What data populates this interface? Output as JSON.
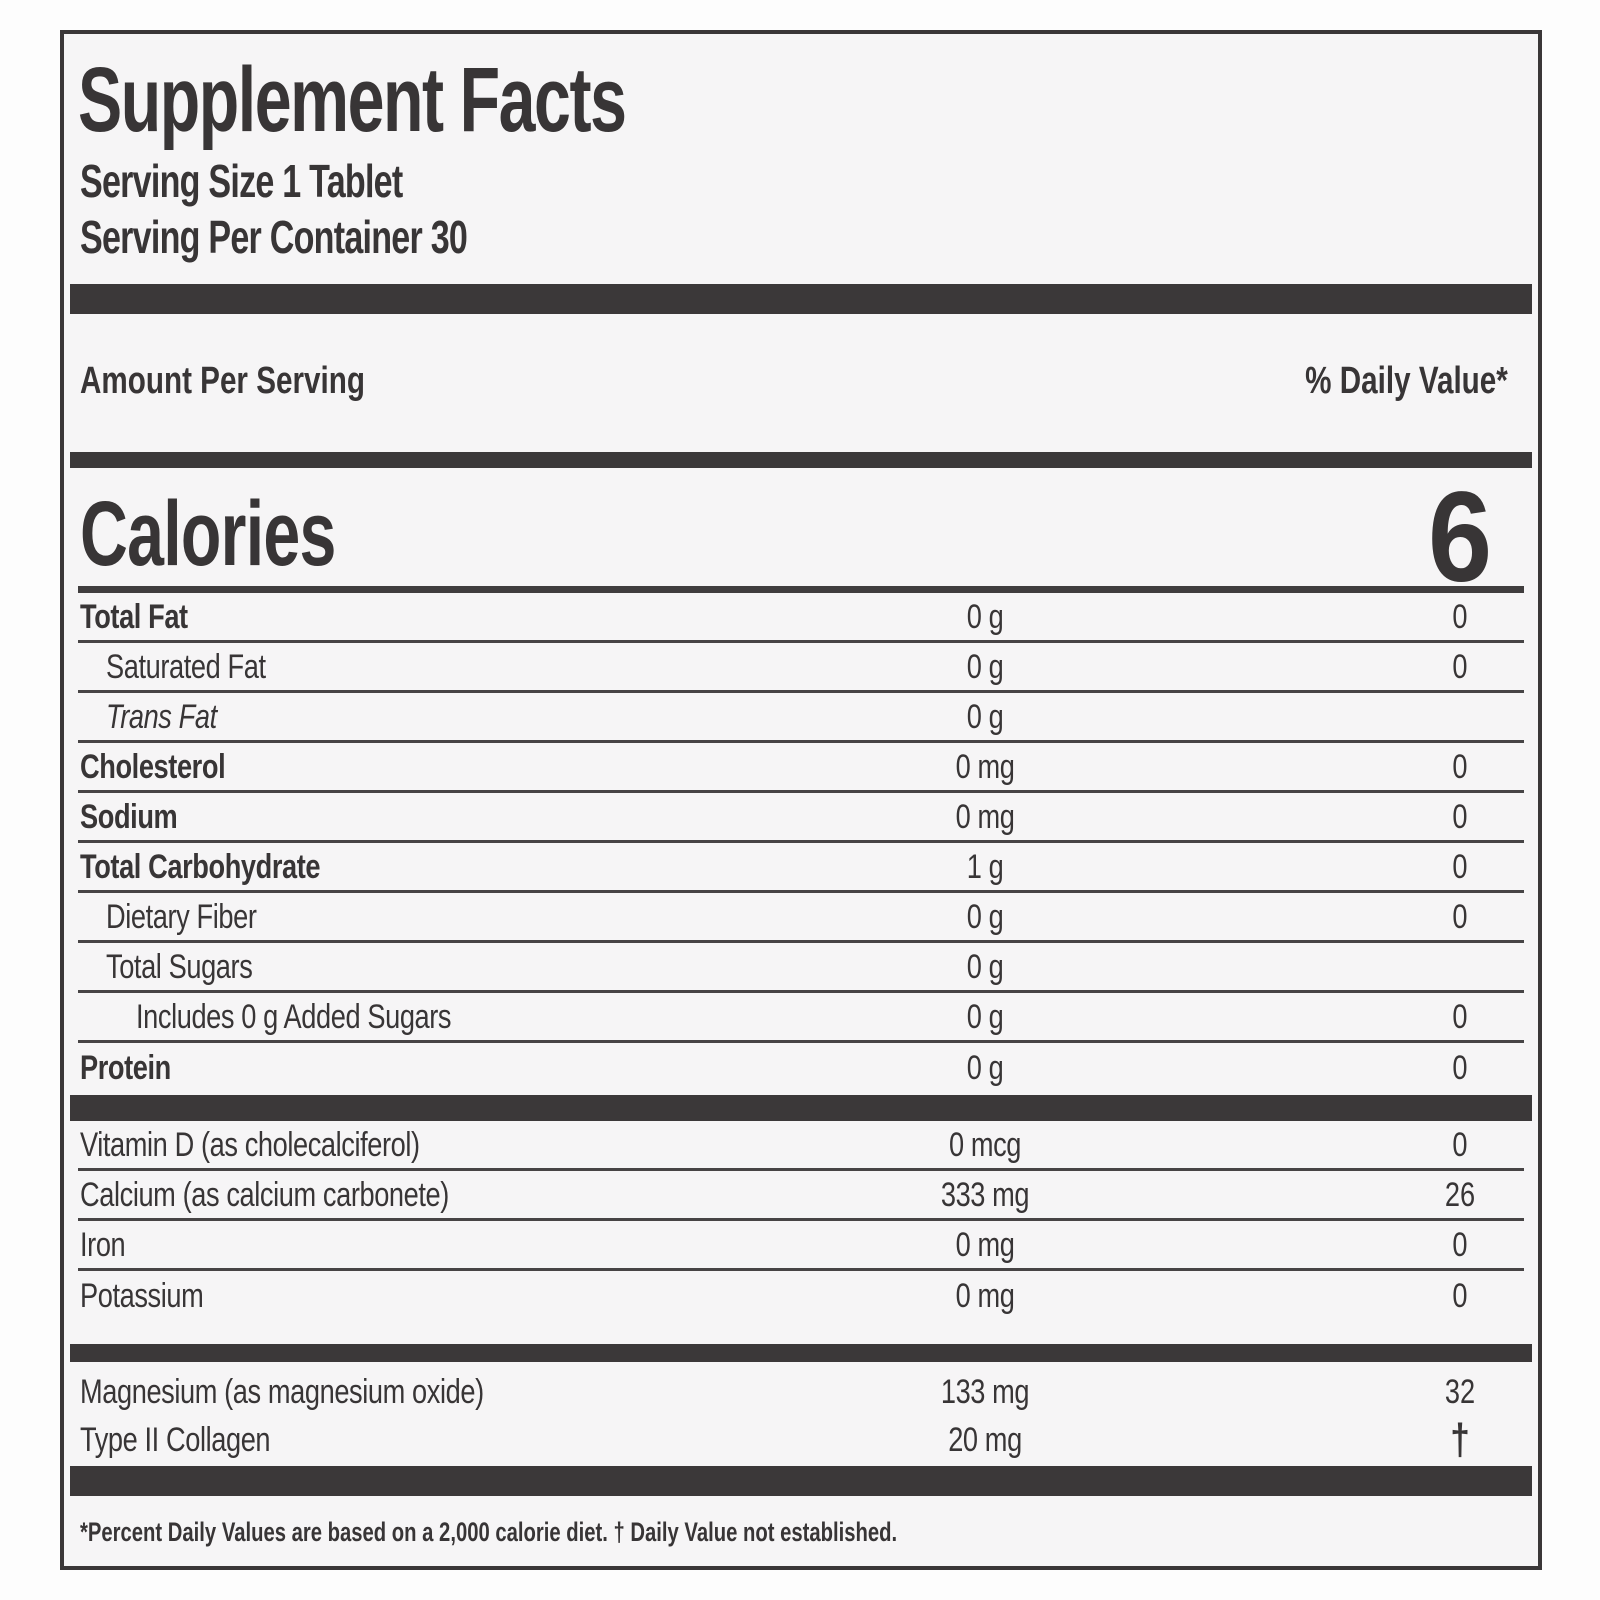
{
  "title": "Supplement Facts",
  "serving": {
    "size": "Serving Size 1 Tablet",
    "per_container": "Serving Per Container 30"
  },
  "columns": {
    "amount_header": "Amount Per Serving",
    "dv_header": "% Daily Value*"
  },
  "calories": {
    "label": "Calories",
    "value": "6"
  },
  "rows": [
    {
      "name": "Total Fat",
      "amount": "0 g",
      "dv": "0"
    },
    {
      "name": "Saturated Fat",
      "amount": "0 g",
      "dv": "0"
    },
    {
      "name": "Trans Fat",
      "amount": "0 g",
      "dv": ""
    },
    {
      "name": "Cholesterol",
      "amount": "0 mg",
      "dv": "0"
    },
    {
      "name": "Sodium",
      "amount": "0 mg",
      "dv": "0"
    },
    {
      "name": "Total Carbohydrate",
      "amount": "1 g",
      "dv": "0"
    },
    {
      "name": "Dietary Fiber",
      "amount": "0 g",
      "dv": "0"
    },
    {
      "name": "Total Sugars",
      "amount": "0 g",
      "dv": ""
    },
    {
      "name": "Includes 0 g Added Sugars",
      "amount": "0 g",
      "dv": "0"
    },
    {
      "name": "Protein",
      "amount": "0 g",
      "dv": "0"
    }
  ],
  "micronutrients": [
    {
      "name": "Vitamin D (as cholecalciferol)",
      "amount": "0 mcg",
      "dv": "0"
    },
    {
      "name": "Calcium (as calcium carbonete)",
      "amount": "333 mg",
      "dv": "26"
    },
    {
      "name": "Iron",
      "amount": "0 mg",
      "dv": "0"
    },
    {
      "name": "Potassium",
      "amount": "0 mg",
      "dv": "0"
    }
  ],
  "other_ingredients": [
    {
      "name": "Magnesium (as magnesium oxide)",
      "amount": "133 mg",
      "dv": "32"
    },
    {
      "name": "Type II Collagen",
      "amount": "20 mg",
      "dv": "†"
    }
  ],
  "footnote": "*Percent Daily Values are based on a 2,000 calorie diet. † Daily Value not established.",
  "colors": {
    "ink": "#383536",
    "bar": "#3b3839",
    "background": "#f6f5f6"
  }
}
